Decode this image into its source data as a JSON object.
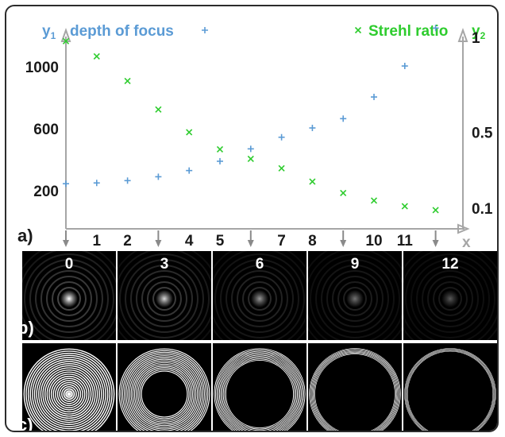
{
  "colors": {
    "series1": "#5b9bd5",
    "series2": "#2ecc2e",
    "axis": "#a6a6a6",
    "text": "#1a1a1a",
    "panel_bg": "#000000"
  },
  "panel_labels": {
    "a": "a)",
    "b": "b)",
    "c": "c)"
  },
  "chart_data": {
    "type": "scatter",
    "x_axis": {
      "label": "x",
      "range": [
        0,
        12.5
      ],
      "tick_labels": [
        "1",
        "2",
        "4",
        "5",
        "7",
        "8",
        "10",
        "11"
      ],
      "tick_values": [
        1,
        2,
        4,
        5,
        7,
        8,
        10,
        11
      ],
      "arrow_positions": [
        0,
        3,
        6,
        9,
        12
      ]
    },
    "y1_axis": {
      "label": "y1",
      "label_main": "y",
      "label_sub": "1",
      "range": [
        0,
        1300
      ],
      "ticks": [
        200,
        600,
        1000
      ],
      "tick_labels": [
        "200",
        "600",
        "1000"
      ]
    },
    "y2_axis": {
      "label": "y2",
      "label_main": "y",
      "label_sub": "2",
      "range": [
        0,
        1.05
      ],
      "ticks": [
        0.1,
        0.5,
        1
      ],
      "tick_labels": [
        "0.1",
        "0.5",
        "1"
      ]
    },
    "series": [
      {
        "name": "depth of focus",
        "marker": "+",
        "axis": "y1",
        "x": [
          0,
          1,
          2,
          3,
          4,
          5,
          6,
          7,
          8,
          9,
          10,
          11,
          12
        ],
        "y": [
          245,
          250,
          265,
          290,
          330,
          390,
          470,
          545,
          605,
          665,
          805,
          1005,
          1250
        ]
      },
      {
        "name": "Strehl ratio",
        "marker": "x",
        "axis": "y2",
        "x": [
          0,
          1,
          2,
          3,
          4,
          5,
          6,
          7,
          8,
          9,
          10,
          11,
          12
        ],
        "y": [
          0.98,
          0.9,
          0.77,
          0.62,
          0.5,
          0.41,
          0.36,
          0.31,
          0.24,
          0.18,
          0.14,
          0.11,
          0.09
        ]
      }
    ]
  },
  "psf_panels": {
    "labels": [
      "0",
      "3",
      "6",
      "9",
      "12"
    ],
    "peak_brightness": [
      1.0,
      0.85,
      0.6,
      0.45,
      0.35
    ]
  },
  "pupil_panels": {
    "inner_black_fraction": [
      0.0,
      0.48,
      0.72,
      0.86,
      0.92
    ],
    "ring_count": [
      22,
      14,
      10,
      7,
      5
    ]
  }
}
